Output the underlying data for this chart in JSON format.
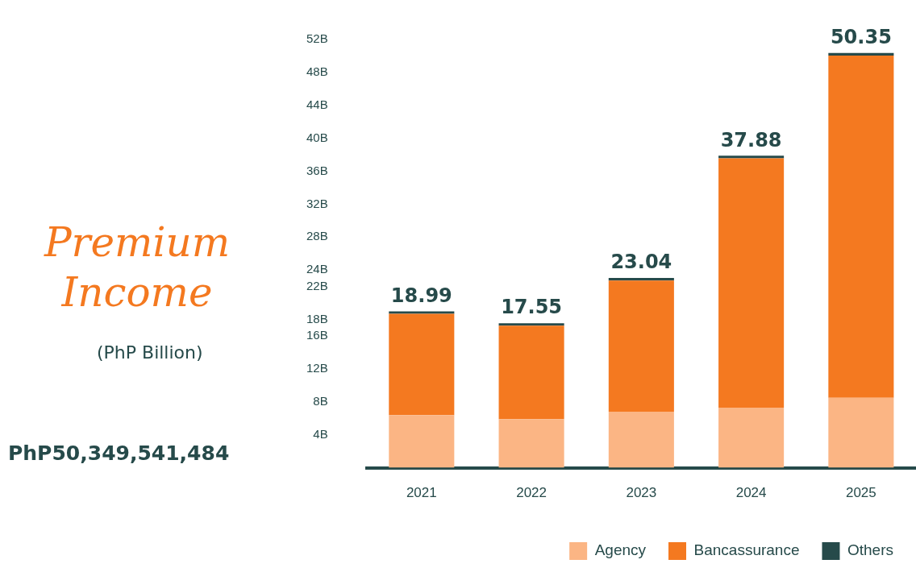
{
  "chart_data": {
    "type": "bar",
    "stacked": true,
    "title": "Premium Income",
    "subtitle": "(PhP Billion)",
    "annotations": [
      "PhP50,349,541,484"
    ],
    "categories": [
      "2021",
      "2022",
      "2023",
      "2024",
      "2025"
    ],
    "series": [
      {
        "name": "Agency",
        "color": "#fbb584",
        "values": [
          6.4,
          5.9,
          6.8,
          7.3,
          8.5
        ]
      },
      {
        "name": "Bancassurance",
        "color": "#f47920",
        "values": [
          12.29,
          11.35,
          15.94,
          30.28,
          41.55
        ]
      },
      {
        "name": "Others",
        "color": "#264a4a",
        "values": [
          0.3,
          0.3,
          0.3,
          0.3,
          0.3
        ]
      }
    ],
    "totals": [
      "18.99",
      "17.55",
      "23.04",
      "37.88",
      "50.35"
    ],
    "ylim": [
      0,
      52
    ],
    "yticks": [
      {
        "value": 4,
        "label": "4B"
      },
      {
        "value": 8,
        "label": "8B"
      },
      {
        "value": 12,
        "label": "12B"
      },
      {
        "value": 16,
        "label": "16B"
      },
      {
        "value": 18,
        "label": "18B"
      },
      {
        "value": 22,
        "label": "22B"
      },
      {
        "value": 24,
        "label": "24B"
      },
      {
        "value": 28,
        "label": "28B"
      },
      {
        "value": 32,
        "label": "32B"
      },
      {
        "value": 36,
        "label": "36B"
      },
      {
        "value": 40,
        "label": "40B"
      },
      {
        "value": 44,
        "label": "44B"
      },
      {
        "value": 48,
        "label": "48B"
      },
      {
        "value": 52,
        "label": "52B"
      }
    ],
    "grid": false,
    "legend": "bottom right"
  }
}
